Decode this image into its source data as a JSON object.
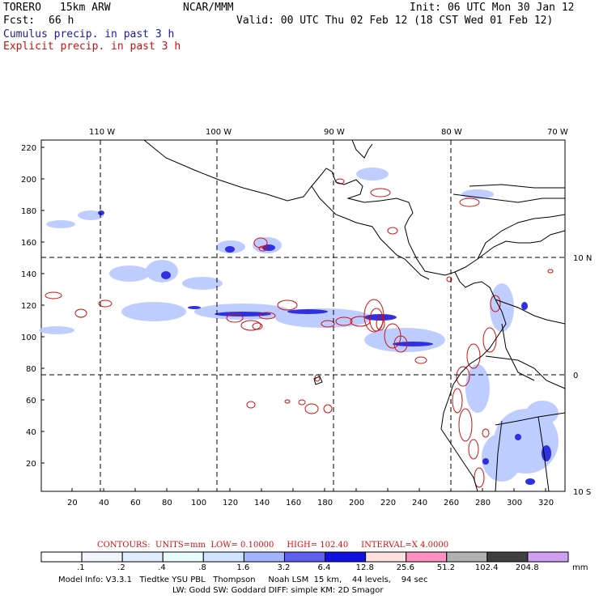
{
  "header": {
    "model": "TORERO",
    "resolution": "15km ARW",
    "org": "NCAR/MMM",
    "init": "Init: 06 UTC Mon 30 Jan 12",
    "fcst_label": "Fcst:",
    "fcst_value": "66 h",
    "valid": "Valid: 00 UTC Thu 02 Feb 12 (18 CST Wed 01 Feb 12)",
    "line_cumulus": "Cumulus precip. in past 3 h",
    "line_explicit": "Explicit precip. in past 3 h"
  },
  "map": {
    "lon_labels": [
      "110 W",
      "100 W",
      "90 W",
      "80 W",
      "70 W"
    ],
    "lat_labels": [
      "10 N",
      "0",
      "10 S"
    ],
    "y_ticks": [
      "220",
      "200",
      "180",
      "160",
      "140",
      "120",
      "100",
      "80",
      "60",
      "40",
      "20"
    ],
    "x_ticks": [
      "20",
      "40",
      "60",
      "80",
      "100",
      "120",
      "140",
      "160",
      "180",
      "200",
      "220",
      "240",
      "260",
      "280",
      "300",
      "320"
    ]
  },
  "contour_info": {
    "label": "CONTOURS:",
    "units": "UNITS=mm",
    "low": "LOW= 0.10000",
    "high": "HIGH= 102.40",
    "interval": "INTERVAL=X 4.0000"
  },
  "colorbar": {
    "labels": [
      ".1",
      ".2",
      ".4",
      ".8",
      "1.6",
      "3.2",
      "6.4",
      "12.8",
      "25.6",
      "51.2",
      "102.4",
      "204.8"
    ],
    "unit": "mm",
    "colors": [
      "#ffffff",
      "#f0f4ff",
      "#e0ecff",
      "#e8fcff",
      "#cfe4ff",
      "#a0b4ff",
      "#6060f0",
      "#1010e0",
      "#ffe0e0",
      "#ff90c0",
      "#b0b0b0",
      "#404040",
      "#d0a0f0"
    ]
  },
  "footer": {
    "line1": "Model Info: V3.3.1   Tiedtke YSU PBL   Thompson     Noah LSM  15 km,    44 levels,    94 sec",
    "line2": "LW: Godd SW: Goddard DIFF: simple KM: 2D Smagor"
  }
}
